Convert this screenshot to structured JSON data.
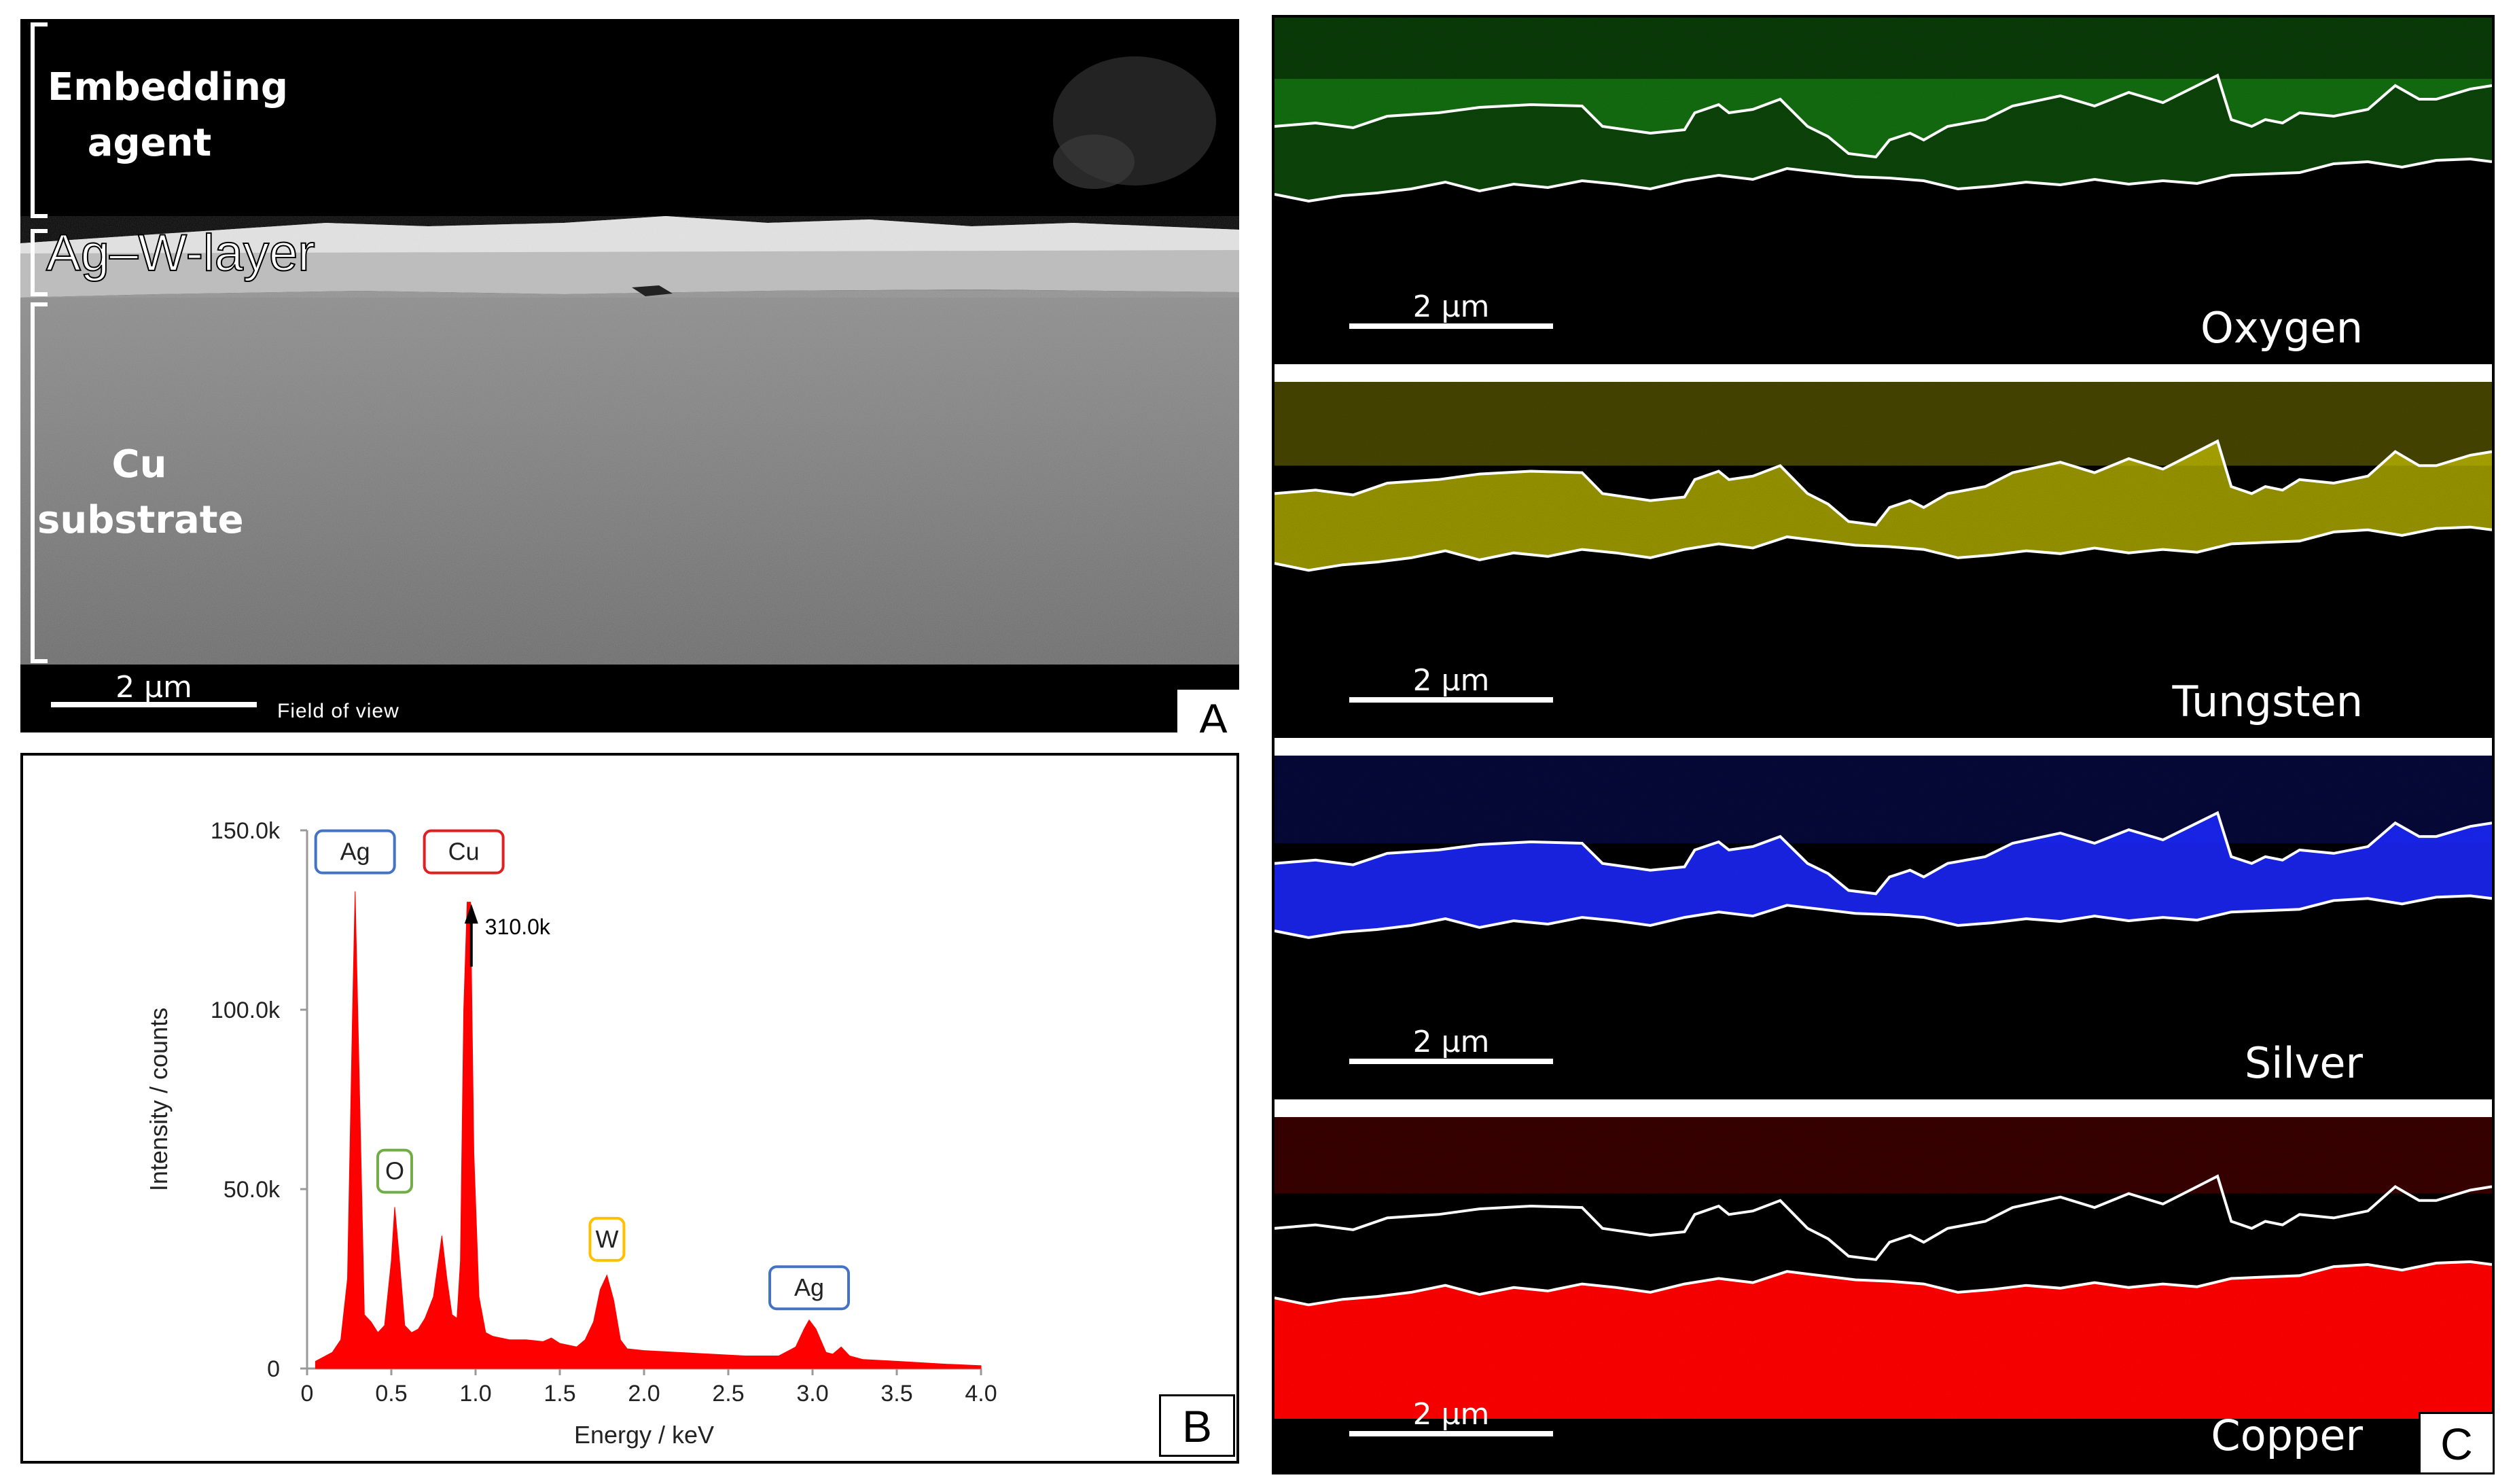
{
  "panel_a": {
    "letter": "A",
    "labels": {
      "embedding_line1": "Embedding",
      "embedding_line2": "agent",
      "layer": "Ag–W-layer",
      "substrate_line1": "Cu",
      "substrate_line2": "substrate"
    },
    "scale_bar": "2 µm",
    "field_of_view": "Field of view"
  },
  "panel_b": {
    "letter": "B",
    "chart_data": {
      "type": "area",
      "xlabel": "Energy / keV",
      "ylabel": "Intensity / counts",
      "xlim": [
        0,
        4.0
      ],
      "ylim": [
        0,
        150000
      ],
      "x_ticks": [
        "0",
        "0.5",
        "1.0",
        "1.5",
        "2.0",
        "2.5",
        "3.0",
        "3.5",
        "4.0"
      ],
      "y_ticks": [
        "0",
        "50.0k",
        "100.0k",
        "150.0k"
      ],
      "series": [
        {
          "color": "#ff0000",
          "x": [
            0.05,
            0.15,
            0.2,
            0.24,
            0.27,
            0.285,
            0.31,
            0.34,
            0.38,
            0.42,
            0.46,
            0.5,
            0.52,
            0.545,
            0.58,
            0.62,
            0.66,
            0.7,
            0.75,
            0.78,
            0.8,
            0.83,
            0.86,
            0.89,
            0.91,
            0.93,
            0.95,
            0.97,
            0.99,
            1.02,
            1.06,
            1.1,
            1.2,
            1.3,
            1.4,
            1.45,
            1.5,
            1.6,
            1.65,
            1.7,
            1.74,
            1.78,
            1.82,
            1.86,
            1.9,
            2.0,
            2.2,
            2.4,
            2.6,
            2.8,
            2.9,
            2.95,
            2.98,
            3.02,
            3.08,
            3.12,
            3.17,
            3.22,
            3.3,
            3.5,
            3.8,
            4.0
          ],
          "y": [
            2000,
            4500,
            8000,
            25000,
            100000,
            133000,
            80000,
            15000,
            13000,
            10000,
            12000,
            30000,
            45000,
            32000,
            12000,
            10000,
            11000,
            14000,
            20000,
            30000,
            37000,
            25000,
            15000,
            14000,
            30000,
            100000,
            130000,
            130000,
            60000,
            20000,
            10000,
            9000,
            8000,
            8000,
            7500,
            8500,
            7000,
            6000,
            8000,
            13000,
            22000,
            26000,
            19000,
            8000,
            5500,
            5000,
            4500,
            4000,
            3500,
            3500,
            6000,
            11000,
            13500,
            11000,
            4500,
            4000,
            6000,
            3500,
            2500,
            2000,
            1200,
            800
          ]
        }
      ],
      "annotations": [
        {
          "text": "Ag",
          "x": 0.285,
          "y": 144000,
          "border": "#4472c4"
        },
        {
          "text": "Cu",
          "x": 0.93,
          "y": 144000,
          "border": "#e02020"
        },
        {
          "text": "O",
          "x": 0.52,
          "y": 55000,
          "border": "#70ad47"
        },
        {
          "text": "W",
          "x": 1.78,
          "y": 36000,
          "border": "#ffc000"
        },
        {
          "text": "Ag",
          "x": 2.98,
          "y": 22500,
          "border": "#4472c4"
        },
        {
          "text": "310.0k",
          "x": 1.02,
          "y": 129000,
          "border": "none"
        }
      ],
      "grid": false,
      "legend": "none"
    }
  },
  "panel_c": {
    "letter": "C",
    "maps": [
      {
        "element": "Oxygen",
        "scale_bar": "2 µm",
        "color": "#22c41e"
      },
      {
        "element": "Tungsten",
        "scale_bar": "2 µm",
        "color": "#c8c400"
      },
      {
        "element": "Silver",
        "scale_bar": "2 µm",
        "color": "#1c28ff"
      },
      {
        "element": "Copper",
        "scale_bar": "2 µm",
        "color": "#ff0000"
      }
    ]
  }
}
